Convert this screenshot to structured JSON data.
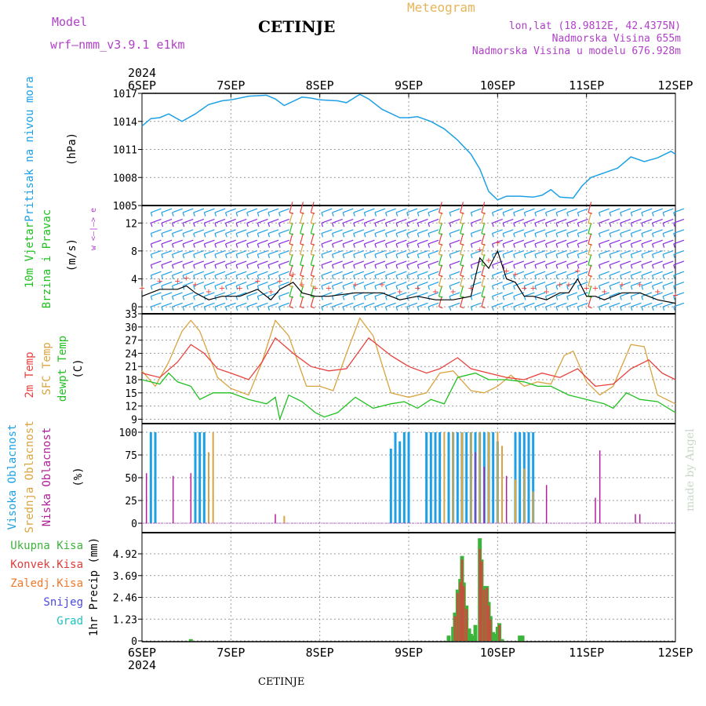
{
  "header": {
    "model_label": "Model",
    "model_name": "wrf—nmm_v3.9.1 e1km",
    "station": "CETINJE",
    "title": "Meteogram",
    "coords": "lon,lat (18.9812E, 42.4375N)",
    "elevation": "Nadmorska Visina 655m",
    "model_elevation": "Nadmorska Visina u modelu 676.928m",
    "footer_station": "CETINJE",
    "watermark": "made by Angel"
  },
  "colors": {
    "pressure": "#1ea0e6",
    "t2m": "#e8413c",
    "sfc": "#d9a441",
    "dew": "#20c020",
    "high_cloud": "#1ea0e6",
    "mid_cloud": "#d9a441",
    "low_cloud": "#b0209a",
    "total_precip": "#3cb43c",
    "conv_precip": "#e03c3c",
    "freezing": "#f07828",
    "snow": "#4848e0",
    "grad": "#20c0c0",
    "wind_calm": "#8a2be2",
    "wind_light": "#1ea0e6",
    "wind_moderate": "#20c020",
    "wind_strong": "#e8413c",
    "title": "#e6b45a",
    "header_text": "#b040c8"
  },
  "time_axis": {
    "year": "2024",
    "labels": [
      "6SEP",
      "7SEP",
      "8SEP",
      "9SEP",
      "10SEP",
      "11SEP",
      "12SEP"
    ]
  },
  "chart_data": [
    {
      "type": "line",
      "id": "pressure",
      "ylabel": [
        "Pritisak na nivou mora",
        "(hPa)"
      ],
      "yticks": [
        "1017",
        "1014",
        "1011",
        "1008",
        "1005"
      ],
      "ylim": [
        1005,
        1017
      ],
      "x_unit": "days since 6SEP 00UTC",
      "series": [
        {
          "x": [
            0,
            0.1,
            0.2,
            0.3,
            0.45,
            0.6,
            0.75,
            0.9,
            1.0,
            1.2,
            1.4,
            1.5,
            1.6,
            1.8,
            1.9,
            2.0,
            2.2,
            2.3,
            2.45,
            2.55,
            2.7,
            2.9,
            3.0,
            3.1,
            3.25,
            3.4,
            3.55,
            3.7,
            3.8,
            3.9,
            4.0,
            4.1,
            4.25,
            4.4,
            4.5,
            4.6,
            4.7,
            4.85,
            4.95,
            5.05,
            5.2,
            5.35,
            5.5,
            5.65,
            5.8,
            5.95,
            6.0
          ],
          "values": [
            1013.5,
            1014.3,
            1014.4,
            1014.8,
            1014.0,
            1014.8,
            1015.8,
            1016.2,
            1016.3,
            1016.7,
            1016.8,
            1016.4,
            1015.7,
            1016.6,
            1016.5,
            1016.3,
            1016.2,
            1016.0,
            1016.9,
            1016.4,
            1015.3,
            1014.4,
            1014.4,
            1014.5,
            1014.0,
            1013.2,
            1012.0,
            1010.5,
            1008.9,
            1006.5,
            1005.6,
            1006.0,
            1006.0,
            1005.9,
            1006.1,
            1006.7,
            1005.9,
            1005.8,
            1007.1,
            1008.0,
            1008.5,
            1009.0,
            1010.2,
            1009.7,
            1010.1,
            1010.8,
            1010.5
          ]
        }
      ]
    },
    {
      "type": "line",
      "id": "wind",
      "ylabel": [
        "10m Vjetar",
        "Brzina i Pravac",
        "(m/s)"
      ],
      "yticks": [
        "12",
        "8",
        "4",
        "0"
      ],
      "ylim": [
        -1,
        14.5
      ],
      "compass": "w <—|—> e",
      "series": [
        {
          "name": "speed",
          "x": [
            0,
            0.2,
            0.4,
            0.5,
            0.6,
            0.75,
            0.9,
            1.1,
            1.3,
            1.45,
            1.55,
            1.7,
            1.8,
            1.95,
            2.1,
            2.4,
            2.7,
            2.9,
            3.1,
            3.3,
            3.5,
            3.7,
            3.8,
            3.9,
            4.0,
            4.1,
            4.2,
            4.3,
            4.4,
            4.55,
            4.7,
            4.8,
            4.9,
            5.0,
            5.1,
            5.2,
            5.4,
            5.6,
            5.8,
            6.0
          ],
          "values": [
            1.5,
            2.5,
            2.5,
            3.0,
            2.0,
            1.0,
            1.5,
            1.5,
            2.5,
            1.0,
            2.5,
            3.5,
            2.0,
            1.5,
            1.5,
            2.0,
            2.0,
            1.0,
            1.5,
            1.0,
            1.0,
            1.5,
            7.0,
            5.5,
            8.0,
            4.0,
            3.5,
            1.5,
            1.5,
            1.0,
            2.0,
            2.0,
            4.0,
            1.5,
            1.5,
            1.0,
            2.0,
            2.0,
            1.0,
            0.5
          ]
        }
      ]
    },
    {
      "type": "line",
      "id": "temperature",
      "ylabel": [
        "2m Temp",
        "SFC Temp",
        "dewpt Temp",
        "(C)"
      ],
      "yticks": [
        "33",
        "30",
        "27",
        "24",
        "21",
        "18",
        "15",
        "12",
        "9"
      ],
      "ylim": [
        8,
        33
      ],
      "series": [
        {
          "name": "2m Temp",
          "x": [
            0,
            0.2,
            0.4,
            0.55,
            0.7,
            0.85,
            1.0,
            1.2,
            1.35,
            1.5,
            1.7,
            1.9,
            2.1,
            2.3,
            2.55,
            2.8,
            3.0,
            3.2,
            3.35,
            3.55,
            3.7,
            3.9,
            4.1,
            4.3,
            4.5,
            4.7,
            4.9,
            5.1,
            5.3,
            5.5,
            5.7,
            5.85,
            6.0
          ],
          "values": [
            19.5,
            18.5,
            22.0,
            26.0,
            24.0,
            20.5,
            19.5,
            18.0,
            22.0,
            27.5,
            24.0,
            21.0,
            20.0,
            20.5,
            27.5,
            23.5,
            21.0,
            19.5,
            20.5,
            23.0,
            20.5,
            19.5,
            18.5,
            18.0,
            19.5,
            18.5,
            20.5,
            16.5,
            17.0,
            20.5,
            22.5,
            19.5,
            18.0
          ]
        },
        {
          "name": "SFC Temp",
          "x": [
            0,
            0.15,
            0.3,
            0.45,
            0.55,
            0.65,
            0.85,
            1.0,
            1.2,
            1.35,
            1.5,
            1.65,
            1.85,
            2.0,
            2.15,
            2.3,
            2.45,
            2.6,
            2.8,
            3.0,
            3.2,
            3.35,
            3.5,
            3.7,
            3.85,
            4.0,
            4.15,
            4.3,
            4.45,
            4.6,
            4.75,
            4.85,
            5.0,
            5.15,
            5.3,
            5.5,
            5.65,
            5.8,
            6.0
          ],
          "values": [
            20.0,
            16.5,
            22.0,
            29.0,
            31.5,
            29.0,
            18.5,
            16.0,
            14.5,
            22.0,
            31.5,
            28.0,
            16.5,
            16.5,
            15.5,
            24.0,
            32.0,
            28.0,
            15.0,
            14.0,
            15.0,
            19.5,
            20.0,
            15.5,
            15.0,
            16.5,
            19.0,
            16.5,
            17.5,
            17.0,
            23.5,
            24.5,
            17.5,
            14.5,
            16.5,
            26.0,
            25.5,
            14.5,
            12.5
          ]
        },
        {
          "name": "dewpt Temp",
          "x": [
            0,
            0.2,
            0.3,
            0.4,
            0.55,
            0.65,
            0.8,
            1.0,
            1.2,
            1.4,
            1.5,
            1.55,
            1.65,
            1.8,
            1.95,
            2.05,
            2.2,
            2.4,
            2.6,
            2.8,
            2.95,
            3.1,
            3.25,
            3.4,
            3.55,
            3.75,
            3.9,
            4.1,
            4.3,
            4.45,
            4.6,
            4.8,
            5.0,
            5.2,
            5.3,
            5.45,
            5.6,
            5.8,
            6.0
          ],
          "values": [
            18.0,
            17.0,
            19.5,
            17.5,
            16.5,
            13.5,
            15.0,
            15.0,
            13.5,
            12.5,
            14.0,
            9.0,
            14.5,
            13.0,
            10.5,
            9.5,
            10.5,
            14.0,
            11.5,
            12.5,
            13.0,
            11.5,
            13.5,
            12.5,
            18.5,
            19.5,
            18.0,
            18.0,
            17.5,
            16.5,
            16.5,
            14.5,
            13.5,
            12.5,
            11.5,
            15.0,
            13.5,
            13.0,
            10.5
          ]
        }
      ]
    },
    {
      "type": "bar",
      "id": "clouds",
      "ylabel": [
        "Visoka Oblacnost",
        "Srednja Oblacnost",
        "Niska Oblacnost",
        "(%)"
      ],
      "yticks": [
        "100",
        "75",
        "50",
        "25",
        "0"
      ],
      "ylim": [
        0,
        100
      ],
      "series": [
        {
          "name": "Visoka Oblacnost",
          "x": [
            0.1,
            0.15,
            0.6,
            0.65,
            0.7,
            2.8,
            2.85,
            2.9,
            2.95,
            3.0,
            3.2,
            3.25,
            3.3,
            3.35,
            3.45,
            3.5,
            3.55,
            3.6,
            3.65,
            3.7,
            3.75,
            3.8,
            3.85,
            3.9,
            3.95,
            4.0,
            4.2,
            4.25,
            4.3,
            4.35,
            4.4
          ],
          "values": [
            100,
            100,
            100,
            100,
            100,
            82,
            100,
            90,
            100,
            100,
            100,
            100,
            100,
            100,
            100,
            100,
            100,
            100,
            100,
            100,
            100,
            100,
            100,
            100,
            100,
            90,
            100,
            100,
            100,
            100,
            100
          ]
        },
        {
          "name": "Srednja Oblacnost",
          "x": [
            0.75,
            0.8,
            1.6,
            3.4,
            3.5,
            3.6,
            3.7,
            3.8,
            3.9,
            4.0,
            4.05,
            4.2,
            4.3,
            4.4
          ],
          "values": [
            78,
            100,
            8,
            100,
            100,
            100,
            100,
            100,
            100,
            100,
            85,
            48,
            60,
            35
          ]
        },
        {
          "name": "Niska Oblacnost",
          "x": [
            0.05,
            0.35,
            0.55,
            1.5,
            3.75,
            3.85,
            4.1,
            4.55,
            5.1,
            5.15,
            5.55,
            5.6
          ],
          "values": [
            55,
            52,
            55,
            10,
            78,
            62,
            52,
            42,
            28,
            80,
            10,
            10
          ]
        }
      ]
    },
    {
      "type": "bar",
      "id": "precip",
      "ylabel": [
        "1hr Precip (mm)"
      ],
      "legend": [
        "Ukupna Kisa",
        "Konvek.Kisa",
        "Zaledj.Kisa",
        "Snijeg",
        "Grad"
      ],
      "yticks": [
        "4.92",
        "3.69",
        "2.46",
        "1.23",
        "0"
      ],
      "ylim": [
        0,
        6
      ],
      "series": [
        {
          "name": "Ukupna Kisa",
          "x": [
            0.55,
            3.45,
            3.5,
            3.52,
            3.55,
            3.58,
            3.6,
            3.62,
            3.65,
            3.68,
            3.7,
            3.72,
            3.75,
            3.8,
            3.82,
            3.85,
            3.88,
            3.9,
            3.92,
            3.95,
            3.98,
            4.0,
            4.02,
            4.05,
            4.25,
            4.28
          ],
          "values": [
            0.1,
            0.3,
            0.8,
            1.6,
            2.9,
            3.5,
            4.8,
            3.3,
            2.0,
            0.7,
            0.4,
            0.3,
            0.9,
            5.8,
            4.6,
            3.1,
            3.1,
            2.2,
            1.4,
            0.5,
            0.4,
            0.8,
            1.0,
            0.1,
            0.3,
            0.3
          ]
        },
        {
          "name": "Konvek.Kisa",
          "x": [
            3.52,
            3.55,
            3.58,
            3.6,
            3.62,
            3.65,
            3.8,
            3.82,
            3.85,
            3.88,
            3.9,
            3.92,
            4.02
          ],
          "values": [
            1.4,
            2.7,
            3.3,
            4.6,
            3.1,
            1.8,
            5.2,
            4.5,
            2.9,
            3.0,
            2.0,
            1.2,
            0.9
          ]
        }
      ]
    }
  ]
}
